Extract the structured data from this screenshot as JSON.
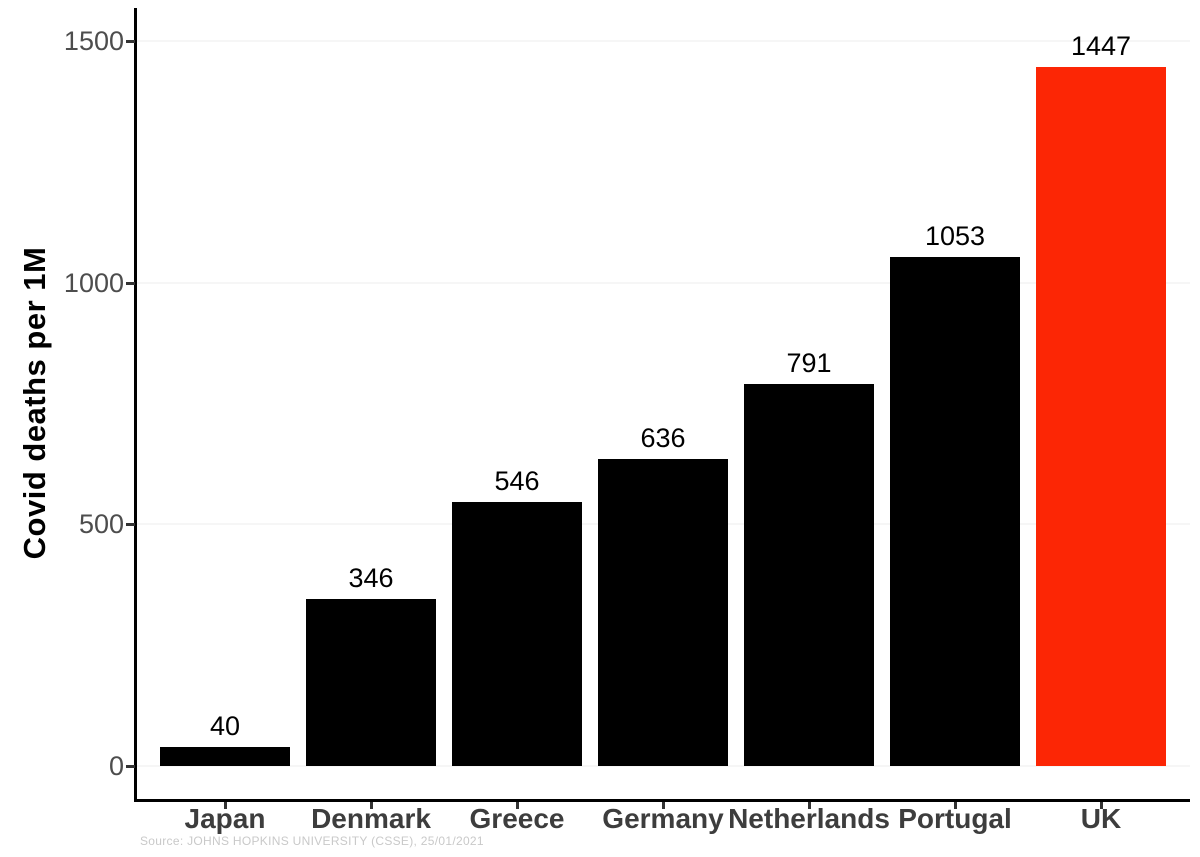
{
  "figure": {
    "background_color": "#ffffff",
    "axis_line_color": "#000000",
    "tick_color": "#333333",
    "tick_label_color": "#4d4d4d",
    "category_label_color": "#3d3d3d",
    "gridline_color": "#f6f6f6",
    "caption_color": "#c9c9c9"
  },
  "chart_data": {
    "type": "bar",
    "title": "",
    "xlabel": "",
    "ylabel": "Covid deaths per 1M",
    "categories": [
      "Japan",
      "Denmark",
      "Greece",
      "Germany",
      "Netherlands",
      "Portugal",
      "UK"
    ],
    "values": [
      40,
      346,
      546,
      636,
      791,
      1053,
      1447
    ],
    "bar_value_labels": [
      "40",
      "346",
      "546",
      "636",
      "791",
      "1053",
      "1447"
    ],
    "yticks": [
      0,
      500,
      1000,
      1500
    ],
    "ytick_labels": [
      "0",
      "500",
      "1000",
      "1500"
    ],
    "ylim": [
      0,
      1550
    ],
    "grid": "faint horizontal gridlines at y ticks",
    "legend": "none",
    "bar_color_default": "#000000",
    "bar_color_highlight": "#fc2605",
    "highlight_category": "UK",
    "caption": "Source: JOHNS HOPKINS UNIVERSITY (CSSE), 25/01/2021"
  }
}
